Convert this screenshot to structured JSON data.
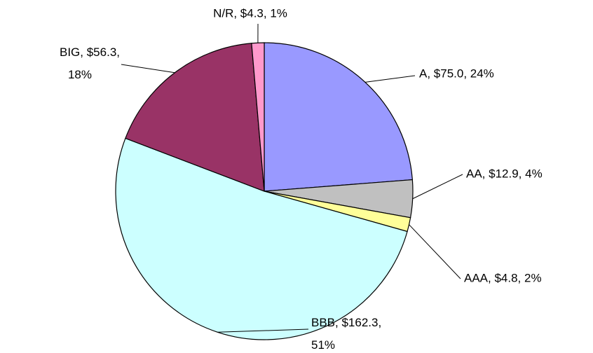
{
  "chart_data": {
    "type": "pie",
    "values": [
      75.0,
      12.9,
      4.8,
      162.3,
      56.3,
      4.3
    ],
    "value_labels": [
      "A, $75.0, 24%",
      "AA, $12.9, 4%",
      "AAA, $4.8, 2%",
      "BBB, $162.3, 51%",
      "BIG, $56.3, 18%",
      "N/R, $4.3, 1%"
    ],
    "colors": [
      "#9999ff",
      "#c0c0c0",
      "#ffff99",
      "#ccffff",
      "#993366",
      "#ff99cc"
    ]
  }
}
